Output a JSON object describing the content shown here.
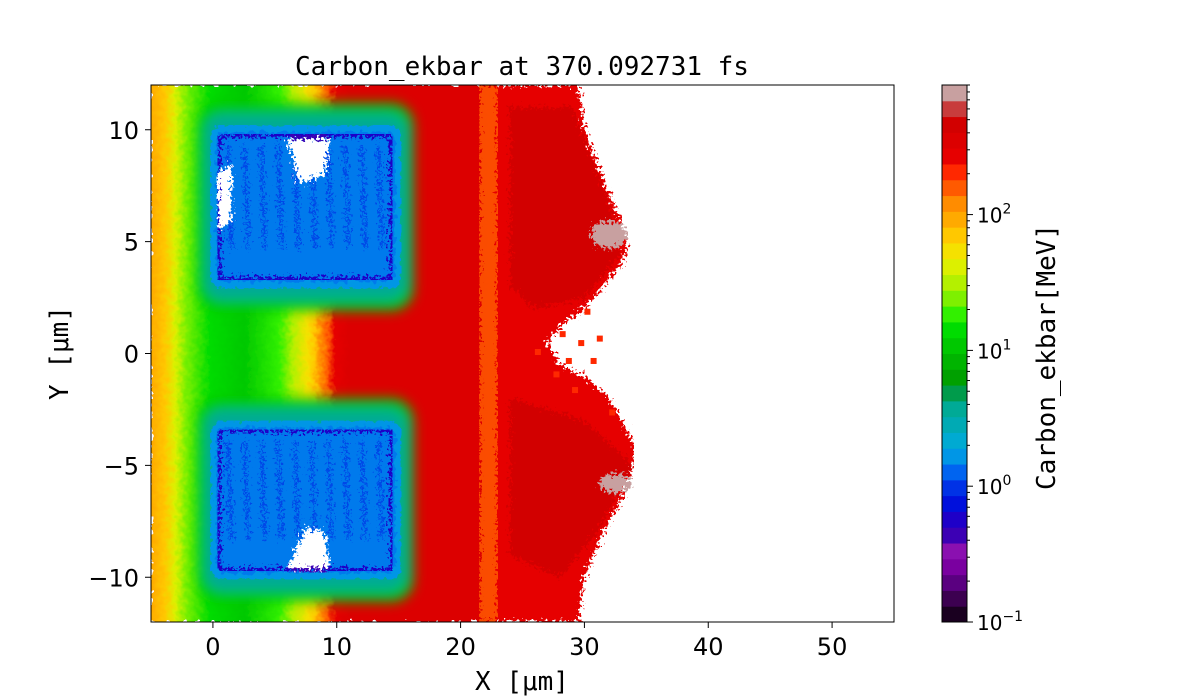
{
  "chart_data": {
    "type": "heatmap",
    "title": "Carbon_ekbar at 370.092731 fs",
    "xlabel": "X  [μm]",
    "ylabel": "Y  [μm]",
    "xlim": [
      -5,
      55
    ],
    "ylim": [
      -12,
      12
    ],
    "x_ticks": [
      0,
      10,
      20,
      30,
      40,
      50
    ],
    "x_tick_labels": [
      "0",
      "10",
      "20",
      "30",
      "40",
      "50"
    ],
    "y_ticks": [
      -10,
      -5,
      0,
      5,
      10
    ],
    "y_tick_labels": [
      "−10",
      "−5",
      "0",
      "5",
      "10"
    ],
    "colorbar": {
      "label": "Carbon_ekbar[MeV]",
      "scale": "log",
      "range": [
        0.1,
        900
      ],
      "ticks": [
        0.1,
        1,
        10,
        100
      ],
      "tick_labels": [
        {
          "base": "10",
          "exp": "−1"
        },
        {
          "base": "10",
          "exp": "0"
        },
        {
          "base": "10",
          "exp": "1"
        },
        {
          "base": "10",
          "exp": "2"
        }
      ],
      "colors": [
        "#1a0020",
        "#3c0050",
        "#5a0080",
        "#7a00a0",
        "#8a10b0",
        "#3c00b4",
        "#1e00c8",
        "#0010dc",
        "#0032e6",
        "#0064f0",
        "#0096e6",
        "#00aad2",
        "#00aab4",
        "#00aa96",
        "#009b4b",
        "#00a000",
        "#00b400",
        "#00c800",
        "#00dc00",
        "#32f000",
        "#7ef000",
        "#b4f000",
        "#dcf000",
        "#f5e100",
        "#ffc800",
        "#ffaa00",
        "#ff8c00",
        "#ff5a00",
        "#ff2800",
        "#e60000",
        "#dc0000",
        "#d20000",
        "#c83c3c",
        "#c8a0a0"
      ]
    },
    "regions": [
      {
        "name": "low-energy block upper",
        "x": [
          0,
          15
        ],
        "y": [
          3,
          10
        ],
        "approx_energy_MeV": 1
      },
      {
        "name": "low-energy block lower",
        "x": [
          0,
          15
        ],
        "y": [
          -10,
          -3
        ],
        "approx_energy_MeV": 1
      },
      {
        "name": "high-energy front",
        "x": [
          22,
          34
        ],
        "y": [
          -12,
          12
        ],
        "approx_energy_MeV": 500
      }
    ]
  }
}
